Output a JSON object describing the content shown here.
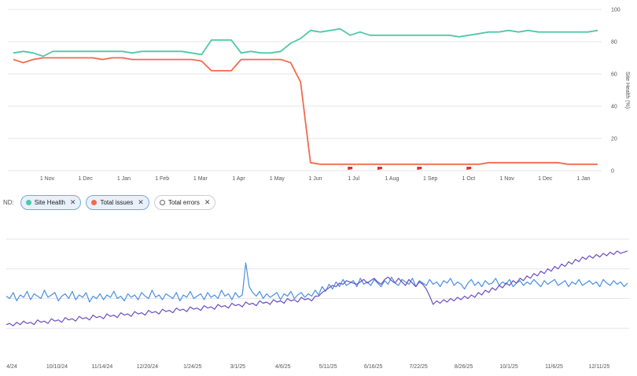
{
  "legend": {
    "prefix": "ND:",
    "items": [
      {
        "label": "Site Health",
        "color": "#4ec9a7",
        "active": true
      },
      {
        "label": "Total issues",
        "color": "#f26b4c",
        "active": true
      },
      {
        "label": "Total errors",
        "color": "#ffffff",
        "active": false
      }
    ],
    "remove_glyph": "✕"
  },
  "chart_data": [
    {
      "type": "line",
      "title": "",
      "ylabel": "Site Health (%)",
      "ylim": [
        0,
        100
      ],
      "yticks": [
        0,
        20,
        40,
        60,
        80,
        100
      ],
      "x_labels": [
        "1 Nov",
        "1 Dec",
        "1 Jan",
        "1 Feb",
        "1 Mar",
        "1 Apr",
        "1 May",
        "1 Jun",
        "1 Jul",
        "1 Aug",
        "1 Sep",
        "1 Oct",
        "1 Nov",
        "1 Dec",
        "1 Jan"
      ],
      "grid": true,
      "series": [
        {
          "name": "Site Health",
          "color": "#4ec9a7",
          "values": [
            73,
            74,
            73,
            71,
            74,
            74,
            74,
            74,
            74,
            74,
            74,
            74,
            73,
            74,
            74,
            74,
            74,
            74,
            73,
            72,
            81,
            81,
            81,
            73,
            74,
            73,
            73,
            74,
            79,
            82,
            87,
            86,
            87,
            88,
            84,
            86,
            84,
            84,
            84,
            84,
            84,
            84,
            84,
            84,
            84,
            83,
            84,
            85,
            86,
            86,
            87,
            86,
            87,
            86,
            86,
            86,
            86,
            86,
            86,
            87
          ]
        },
        {
          "name": "Total issues",
          "color": "#f26b4c",
          "values": [
            69,
            67,
            69,
            70,
            70,
            70,
            70,
            70,
            70,
            69,
            70,
            70,
            69,
            69,
            69,
            69,
            69,
            69,
            69,
            68,
            62,
            62,
            62,
            69,
            69,
            69,
            69,
            69,
            67,
            55,
            5,
            4,
            4,
            4,
            4,
            4,
            4,
            4,
            4,
            4,
            4,
            4,
            4,
            4,
            4,
            4,
            4,
            4,
            5,
            5,
            5,
            5,
            5,
            5,
            5,
            5,
            4,
            4,
            4,
            4
          ]
        }
      ],
      "markers": [
        {
          "label": "",
          "color": "#e0312b",
          "x_index": 34
        },
        {
          "label": "",
          "color": "#e0312b",
          "x_index": 37
        },
        {
          "label": "",
          "color": "#e0312b",
          "x_index": 41
        },
        {
          "label": "",
          "color": "#e0312b",
          "x_index": 46
        }
      ]
    },
    {
      "type": "line",
      "title": "",
      "xlabel": "",
      "ylabel": "",
      "x_labels": [
        "4/24",
        "10/10/24",
        "11/14/24",
        "12/20/24",
        "1/24/25",
        "3/1/25",
        "4/6/25",
        "5/11/25",
        "6/16/25",
        "7/22/25",
        "8/26/25",
        "10/1/25",
        "11/6/25",
        "12/11/25"
      ],
      "ylim": [
        0,
        100
      ],
      "grid": true,
      "series": [
        {
          "name": "",
          "color": "#4a8fe2",
          "values": [
            52,
            50,
            55,
            48,
            53,
            51,
            56,
            49,
            54,
            52,
            50,
            57,
            51,
            53,
            55,
            48,
            52,
            54,
            50,
            56,
            49,
            53,
            51,
            55,
            47,
            52,
            50,
            54,
            49,
            53,
            51,
            56,
            50,
            52,
            48,
            54,
            51,
            53,
            49,
            55,
            52,
            50,
            57,
            51,
            53,
            49,
            54,
            52,
            50,
            55,
            48,
            53,
            51,
            56,
            50,
            52,
            54,
            49,
            55,
            51,
            53,
            50,
            57,
            52,
            54,
            49,
            55,
            51,
            53,
            80,
            60,
            55,
            52,
            56,
            50,
            54,
            51,
            53,
            55,
            49,
            54,
            52,
            56,
            50,
            53,
            55,
            51,
            54,
            52,
            57,
            53,
            60,
            56,
            62,
            58,
            64,
            60,
            66,
            61,
            63,
            65,
            60,
            67,
            62,
            64,
            61,
            66,
            63,
            60,
            65,
            62,
            68,
            63,
            61,
            66,
            64,
            62,
            67,
            60,
            65,
            63,
            61,
            66,
            62,
            64,
            60,
            65,
            63,
            67,
            61,
            64,
            62,
            58,
            63,
            66,
            61,
            64,
            60,
            65,
            62,
            63,
            67,
            61,
            64,
            62,
            66,
            60,
            63,
            65,
            61,
            64,
            62,
            66,
            63,
            60,
            65,
            62,
            64,
            66,
            61,
            63,
            65,
            60,
            64,
            62,
            66,
            61,
            63,
            65,
            62,
            64,
            60,
            66,
            63,
            61,
            65,
            62,
            64,
            60,
            63
          ]
        },
        {
          "name": "",
          "color": "#6a4fc0",
          "values": [
            28,
            29,
            27,
            30,
            28,
            31,
            29,
            30,
            28,
            32,
            30,
            31,
            29,
            33,
            31,
            32,
            30,
            34,
            32,
            33,
            31,
            35,
            33,
            34,
            32,
            36,
            34,
            35,
            33,
            37,
            35,
            36,
            34,
            38,
            36,
            37,
            35,
            39,
            37,
            38,
            36,
            40,
            38,
            39,
            37,
            41,
            39,
            40,
            38,
            42,
            40,
            41,
            39,
            43,
            41,
            42,
            40,
            44,
            42,
            43,
            41,
            45,
            43,
            44,
            42,
            46,
            44,
            45,
            43,
            47,
            45,
            46,
            44,
            48,
            46,
            47,
            45,
            49,
            47,
            48,
            46,
            50,
            48,
            49,
            47,
            51,
            49,
            50,
            48,
            52,
            52,
            55,
            57,
            59,
            61,
            60,
            63,
            62,
            65,
            64,
            63,
            62,
            64,
            66,
            63,
            65,
            67,
            64,
            62,
            66,
            68,
            65,
            63,
            67,
            64,
            61,
            66,
            63,
            60,
            64,
            62,
            58,
            52,
            45,
            48,
            46,
            49,
            47,
            50,
            48,
            51,
            49,
            52,
            50,
            53,
            51,
            55,
            53,
            57,
            55,
            59,
            57,
            61,
            59,
            63,
            61,
            65,
            63,
            67,
            65,
            69,
            67,
            71,
            69,
            73,
            71,
            75,
            73,
            77,
            75,
            79,
            77,
            81,
            79,
            83,
            81,
            85,
            83,
            86,
            84,
            87,
            85,
            88,
            86,
            89,
            87,
            90,
            88,
            89,
            90
          ]
        }
      ]
    }
  ]
}
